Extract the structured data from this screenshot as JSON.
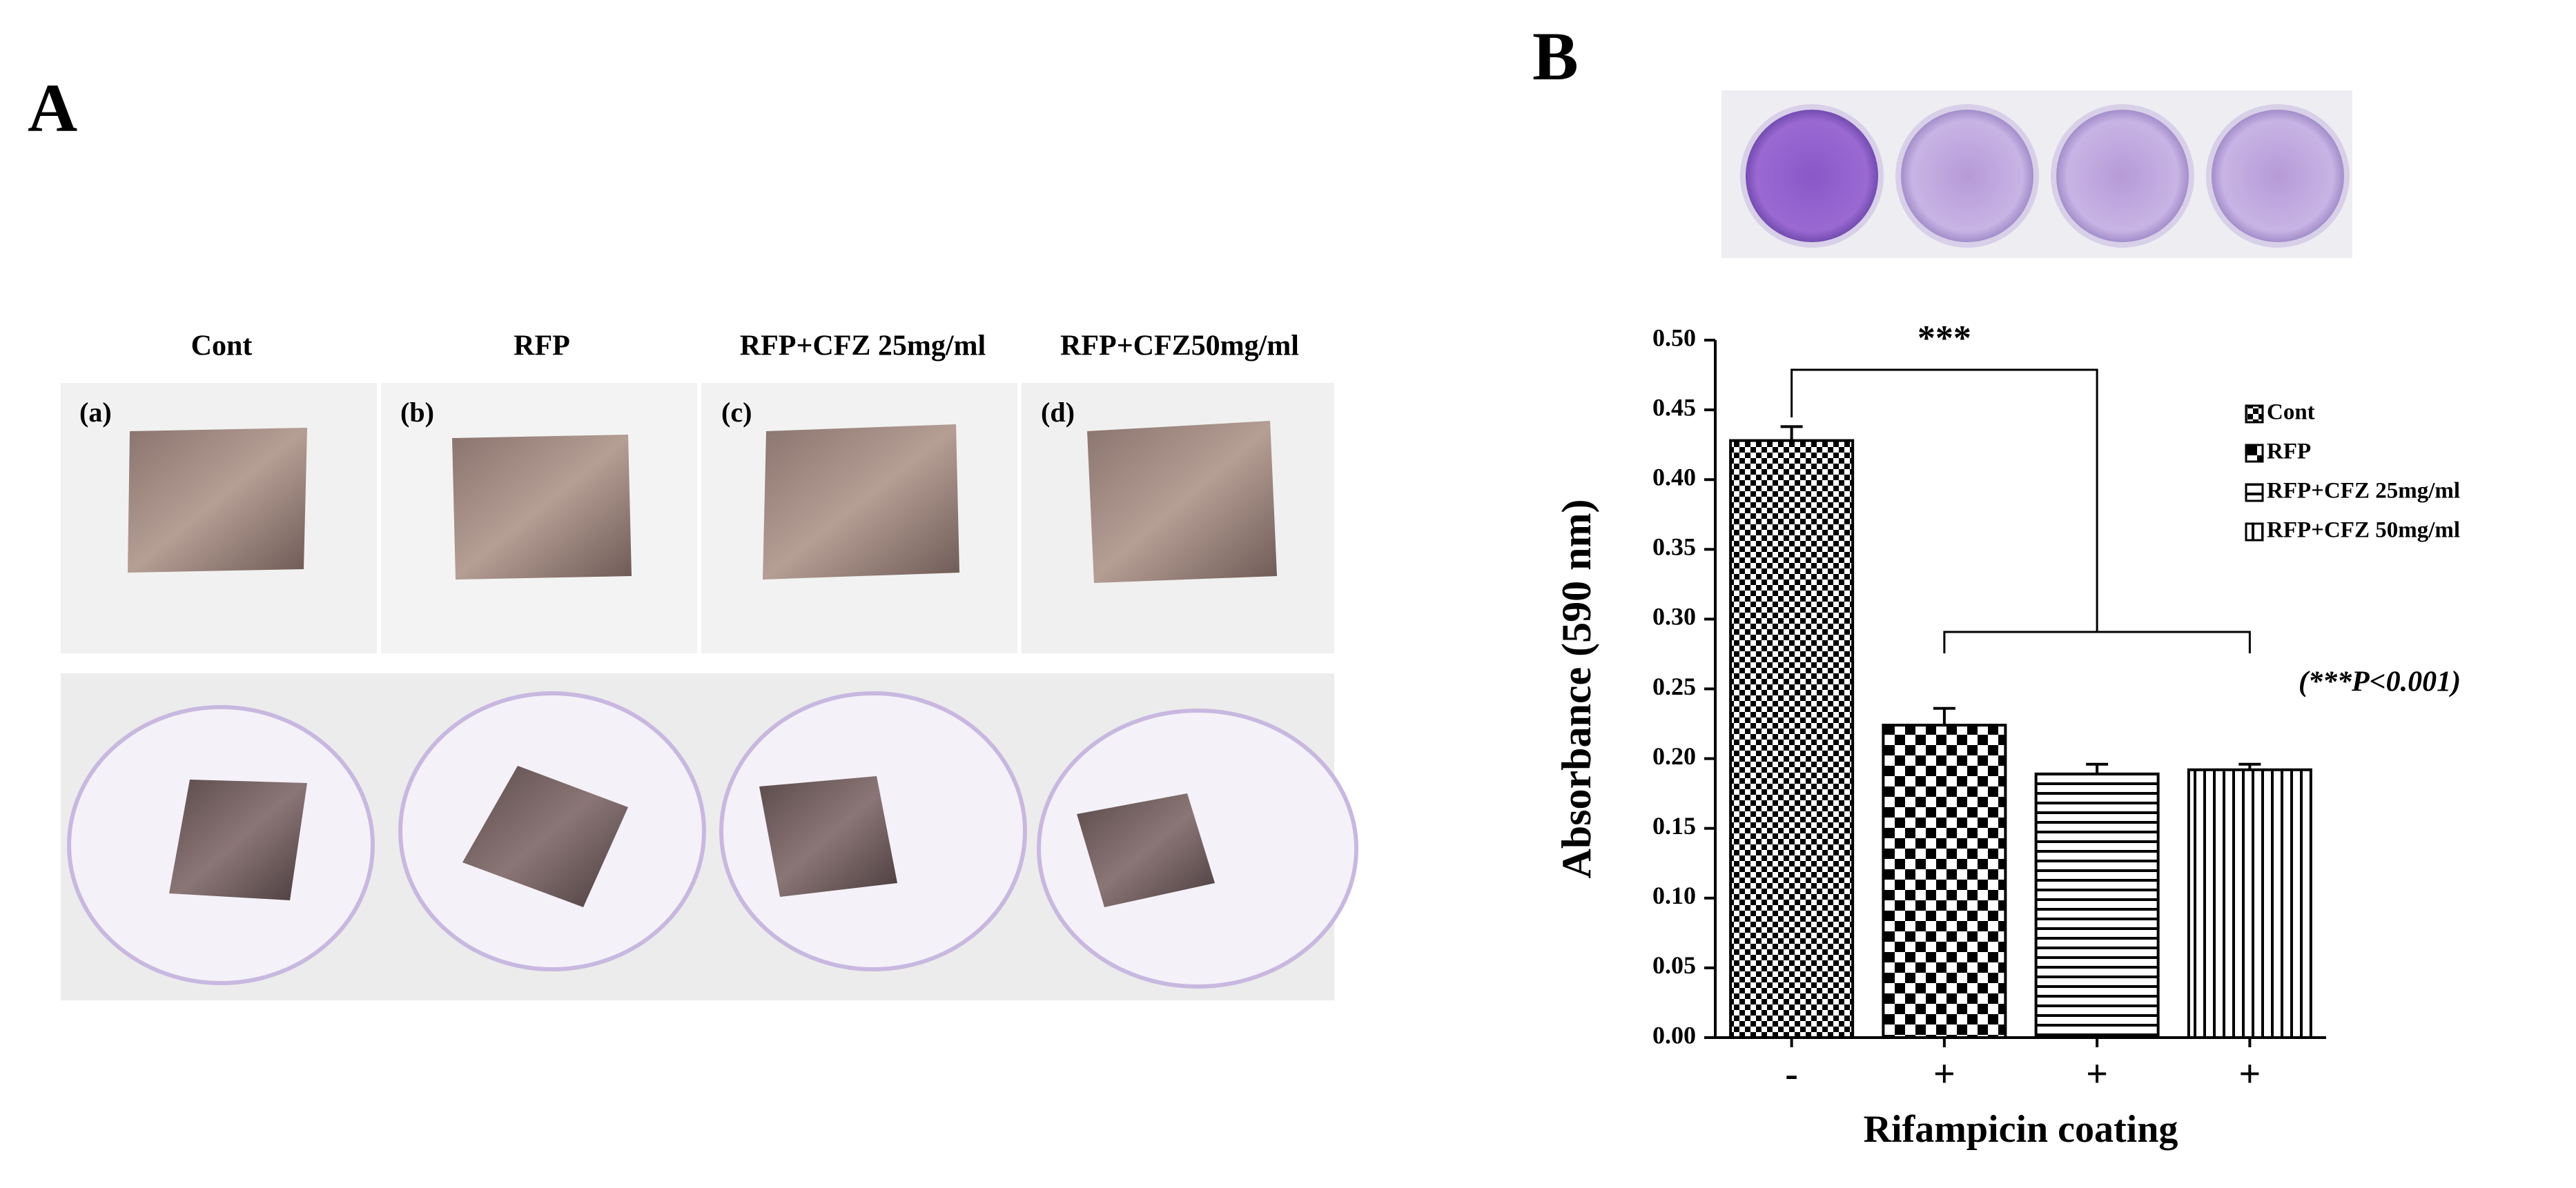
{
  "panel_a": {
    "label": "A",
    "columns": [
      {
        "title": "Cont",
        "tag": "(a)"
      },
      {
        "title": "RFP",
        "tag": "(b)"
      },
      {
        "title": "RFP+CFZ 25mg/ml",
        "tag": "(c)"
      },
      {
        "title": "RFP+CFZ50mg/ml",
        "tag": "(d)"
      }
    ]
  },
  "panel_b": {
    "label": "B"
  },
  "chart_data": {
    "type": "bar",
    "xlabel": "Rifampicin coating",
    "ylabel": "Absorbance (590 nm)",
    "categories": [
      "-",
      "+",
      "+",
      "+"
    ],
    "series": [
      {
        "name": "Cont",
        "color": "#000000",
        "pattern": "checker-fine",
        "values": [
          0.428,
          null,
          null,
          null
        ],
        "errors": [
          0.01,
          null,
          null,
          null
        ]
      },
      {
        "name": "RFP",
        "color": "#000000",
        "pattern": "checker-coarse",
        "values": [
          null,
          0.224,
          null,
          null
        ],
        "errors": [
          null,
          0.012,
          null,
          null
        ]
      },
      {
        "name": "RFP+CFZ 25mg/ml",
        "color": "#000000",
        "pattern": "hlines",
        "values": [
          null,
          null,
          0.189,
          null
        ],
        "errors": [
          null,
          null,
          0.007,
          null
        ]
      },
      {
        "name": "RFP+CFZ 50mg/ml",
        "color": "#000000",
        "pattern": "vlines",
        "values": [
          null,
          null,
          null,
          0.192
        ],
        "errors": [
          null,
          null,
          null,
          0.004
        ]
      }
    ],
    "ylim": [
      0,
      0.5
    ],
    "yticks": [
      {
        "value": 0,
        "label": "0.00"
      },
      {
        "value": 0.05,
        "label": "0.05"
      },
      {
        "value": 0.1,
        "label": "0.10"
      },
      {
        "value": 0.15,
        "label": "0.15"
      },
      {
        "value": 0.2,
        "label": "0.20"
      },
      {
        "value": 0.25,
        "label": "0.25"
      },
      {
        "value": 0.3,
        "label": "0.30"
      },
      {
        "value": 0.35,
        "label": "0.35"
      },
      {
        "value": 0.4,
        "label": "0.40"
      },
      {
        "value": 0.45,
        "label": "0.45"
      },
      {
        "value": 0.5,
        "label": "0.50"
      }
    ],
    "grid": false,
    "legend": "upper right",
    "annotations": [
      "***",
      "(***P<0.001)"
    ]
  }
}
